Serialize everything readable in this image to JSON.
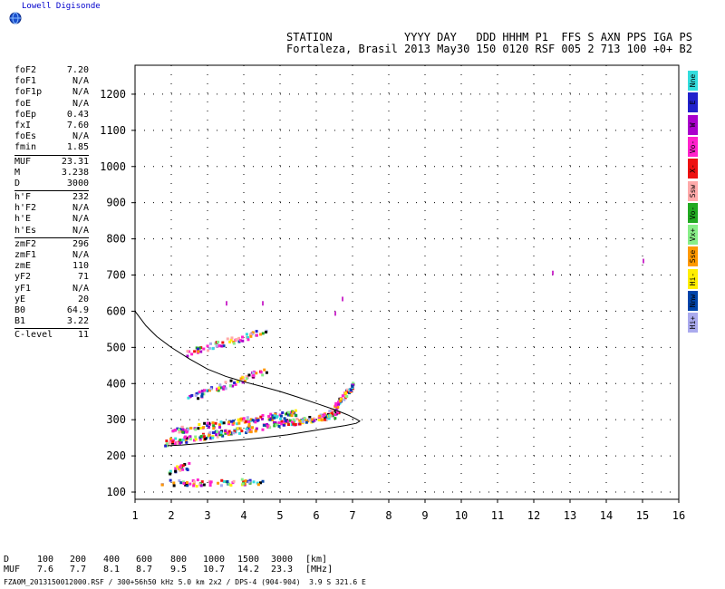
{
  "header": {
    "logo_text": "Lowell Digisonde",
    "line1": "STATION           YYYY DAY   DDD HHHM P1  FFS S AXN PPS IGA PS",
    "line2": "Fortaleza, Brasil 2013 May30 150 0120 RSF 005 2 713 100 +0+ B2"
  },
  "params": {
    "group1": [
      {
        "label": "foF2",
        "value": "7.20"
      },
      {
        "label": "foF1",
        "value": "N/A"
      },
      {
        "label": "foF1p",
        "value": "N/A"
      },
      {
        "label": "foE",
        "value": "N/A"
      },
      {
        "label": "foEp",
        "value": "0.43"
      },
      {
        "label": "fxI",
        "value": "7.60"
      },
      {
        "label": "foEs",
        "value": "N/A"
      },
      {
        "label": "fmin",
        "value": "1.85"
      }
    ],
    "group2": [
      {
        "label": "MUF",
        "value": "23.31"
      },
      {
        "label": "M",
        "value": "3.238"
      },
      {
        "label": "D",
        "value": "3000"
      }
    ],
    "group3": [
      {
        "label": "h'F",
        "value": "232"
      },
      {
        "label": "h'F2",
        "value": "N/A"
      },
      {
        "label": "h'E",
        "value": "N/A"
      },
      {
        "label": "h'Es",
        "value": "N/A"
      }
    ],
    "group4": [
      {
        "label": "zmF2",
        "value": "296"
      },
      {
        "label": "zmF1",
        "value": "N/A"
      },
      {
        "label": "zmE",
        "value": "110"
      },
      {
        "label": "yF2",
        "value": "71"
      },
      {
        "label": "yF1",
        "value": "N/A"
      },
      {
        "label": "yE",
        "value": "20"
      },
      {
        "label": "B0",
        "value": "64.9"
      },
      {
        "label": "B1",
        "value": "3.22"
      }
    ],
    "group5": [
      {
        "label": "C-level",
        "value": "11"
      }
    ]
  },
  "legend": [
    {
      "label": "Nne",
      "color": "#33dddd"
    },
    {
      "label": "E",
      "color": "#2222cc"
    },
    {
      "label": "W",
      "color": "#aa00cc"
    },
    {
      "label": "Vo-",
      "color": "#ff22cc"
    },
    {
      "label": "X-",
      "color": "#ee1111"
    },
    {
      "label": "Ssw",
      "color": "#ffaaaa"
    },
    {
      "label": "Vo-",
      "color": "#22aa22"
    },
    {
      "label": "Vx+",
      "color": "#88ee88"
    },
    {
      "label": "Sse",
      "color": "#ff9900"
    },
    {
      "label": "Hi-",
      "color": "#ffee00"
    },
    {
      "label": "Nnw",
      "color": "#0044aa"
    },
    {
      "label": "Hi+",
      "color": "#aaaaee"
    }
  ],
  "muf_table": {
    "d_label": "D",
    "muf_label": "MUF",
    "d_values": [
      "100",
      "200",
      "400",
      "600",
      "800",
      "1000",
      "1500",
      "3000"
    ],
    "muf_values": [
      "7.6",
      "7.7",
      "8.1",
      "8.7",
      "9.5",
      "10.7",
      "14.2",
      "23.3"
    ],
    "d_unit": "[km]",
    "muf_unit": "[MHz]"
  },
  "footer": "FZA0M_2013150012000.RSF / 300+56h50 kHz 5.0 km 2x2 / DPS-4 (904-904)  3.9 S 321.6 E",
  "chart_data": {
    "type": "scatter",
    "xlim": [
      1,
      16
    ],
    "ylim": [
      80,
      1280
    ],
    "x_ticks": [
      1,
      2,
      3,
      4,
      5,
      6,
      7,
      8,
      9,
      10,
      11,
      12,
      13,
      14,
      15,
      16
    ],
    "y_ticks": [
      100,
      200,
      300,
      400,
      500,
      600,
      700,
      800,
      900,
      1000,
      1100,
      1200
    ],
    "grid": "dotted",
    "profile_curve": {
      "x": [
        1.0,
        1.3,
        1.6,
        2.0,
        2.5,
        3.0,
        3.5,
        4.0,
        4.5,
        5.0,
        5.5,
        6.0,
        6.5,
        6.9,
        7.1,
        7.2,
        7.1,
        6.8,
        6.3,
        5.8,
        5.2,
        4.5,
        3.8,
        3.0,
        2.3,
        1.9
      ],
      "y": [
        600,
        560,
        530,
        500,
        468,
        440,
        420,
        405,
        392,
        378,
        362,
        345,
        328,
        312,
        302,
        296,
        290,
        284,
        276,
        268,
        258,
        250,
        243,
        236,
        230,
        228
      ]
    },
    "echo_traces": [
      {
        "name": "E-region",
        "x0": 1.7,
        "x1": 4.5,
        "y0": 128,
        "y1": 130,
        "dens": 60
      },
      {
        "name": "F main",
        "x0": 1.8,
        "x1": 6.6,
        "y0": 240,
        "y1": 318,
        "dens": 220
      },
      {
        "name": "F upper",
        "x0": 2.0,
        "x1": 5.5,
        "y0": 272,
        "y1": 322,
        "dens": 120
      },
      {
        "name": "F2 2nd hop",
        "x0": 2.4,
        "x1": 4.6,
        "y0": 360,
        "y1": 440,
        "dens": 70
      },
      {
        "name": "F 2nd hop upper",
        "x0": 2.4,
        "x1": 4.6,
        "y0": 488,
        "y1": 548,
        "dens": 60
      },
      {
        "name": "cusp",
        "x0": 6.3,
        "x1": 7.0,
        "y0": 315,
        "y1": 400,
        "dens": 60
      },
      {
        "name": "low band",
        "x0": 1.9,
        "x1": 2.5,
        "y0": 160,
        "y1": 176,
        "dens": 20
      }
    ],
    "isolated_points": [
      {
        "x": 12.5,
        "y": 712
      },
      {
        "x": 15.0,
        "y": 745
      },
      {
        "x": 6.7,
        "y": 640
      },
      {
        "x": 6.5,
        "y": 600
      },
      {
        "x": 3.5,
        "y": 628
      },
      {
        "x": 4.5,
        "y": 628
      }
    ]
  }
}
